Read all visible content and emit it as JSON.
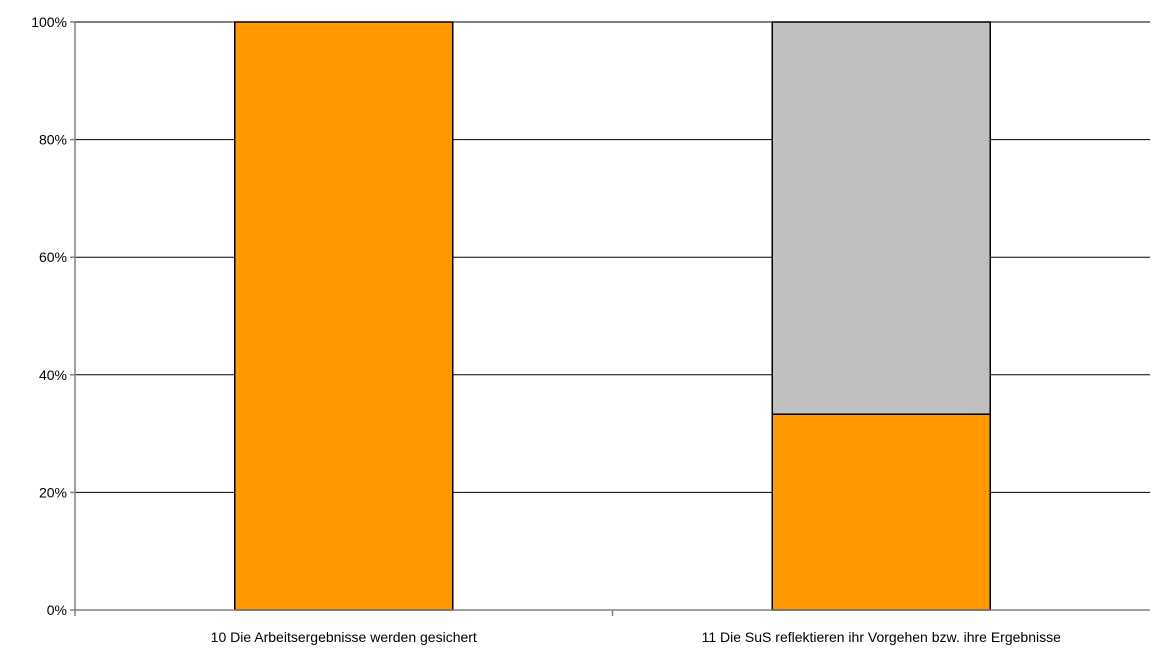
{
  "chart_data": {
    "type": "bar",
    "stacked": true,
    "percent_stacked": true,
    "title": "",
    "xlabel": "",
    "ylabel": "",
    "categories": [
      "10 Die Arbeitsergebnisse werden gesichert",
      "11 Die SuS reflektieren ihr Vorgehen bzw. ihre Ergebnisse"
    ],
    "series": [
      {
        "color": "#ff9900",
        "values": [
          100,
          33.3
        ]
      },
      {
        "color": "#c0c0c0",
        "values": [
          0,
          66.7
        ]
      }
    ],
    "ylim": [
      0,
      100
    ],
    "y_ticks": [
      0,
      20,
      40,
      60,
      80,
      100
    ],
    "y_tick_labels": [
      "0%",
      "20%",
      "40%",
      "60%",
      "80%",
      "100%"
    ],
    "grid": true,
    "legend": "none"
  }
}
